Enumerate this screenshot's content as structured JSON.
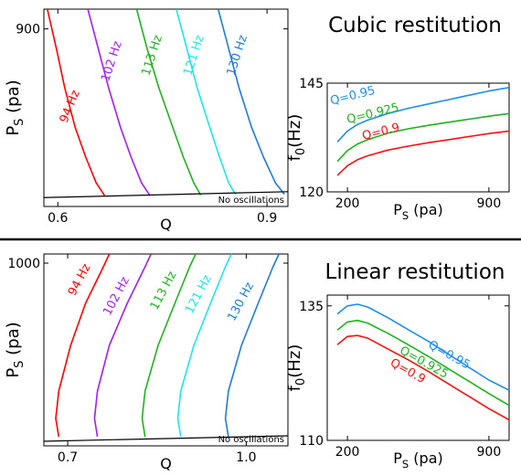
{
  "colors": {
    "94": "#ff0000",
    "102": "#a020f0",
    "113": "#1fb21f",
    "121": "#1fe5e5",
    "130": "#1e7bdc",
    "q090": "#ff1010",
    "q0925": "#1fb21f",
    "q095": "#1e8cf0"
  },
  "chart_data": [
    {
      "panel": "top-left",
      "type": "line",
      "xlabel": "Q",
      "ylabel": "P_S (pa)",
      "xlim": [
        0.58,
        0.93
      ],
      "ylim": [
        0,
        1000
      ],
      "xticks": [
        {
          "v": 0.6,
          "label": "0.6"
        },
        {
          "v": 0.9,
          "label": "0.9"
        }
      ],
      "yticks": [
        {
          "v": 900,
          "label": "900"
        }
      ],
      "boundary": {
        "x": [
          0.58,
          0.93
        ],
        "y": [
          45,
          75
        ]
      },
      "annotation": "No oscillations",
      "series": [
        {
          "name": "94 Hz",
          "color_key": "94",
          "x": [
            0.585,
            0.598,
            0.61,
            0.625,
            0.64,
            0.655,
            0.667
          ],
          "y": [
            1000,
            800,
            600,
            400,
            250,
            120,
            55
          ]
        },
        {
          "name": "102 Hz",
          "color_key": "102",
          "x": [
            0.643,
            0.658,
            0.673,
            0.69,
            0.705,
            0.72,
            0.732
          ],
          "y": [
            1000,
            800,
            600,
            400,
            250,
            120,
            55
          ]
        },
        {
          "name": "113 Hz",
          "color_key": "113",
          "x": [
            0.713,
            0.728,
            0.745,
            0.765,
            0.78,
            0.795,
            0.805
          ],
          "y": [
            1000,
            800,
            600,
            400,
            250,
            120,
            58
          ]
        },
        {
          "name": "121 Hz",
          "color_key": "121",
          "x": [
            0.77,
            0.785,
            0.8,
            0.818,
            0.832,
            0.845,
            0.855
          ],
          "y": [
            1000,
            800,
            600,
            400,
            250,
            120,
            60
          ]
        },
        {
          "name": "130 Hz",
          "color_key": "130",
          "x": [
            0.83,
            0.845,
            0.86,
            0.878,
            0.895,
            0.912,
            0.925
          ],
          "y": [
            1000,
            800,
            600,
            400,
            250,
            120,
            62
          ]
        }
      ],
      "labels": [
        {
          "text": "94 Hz",
          "color_key": "94",
          "x": 0.622,
          "y": 500,
          "rot": -68
        },
        {
          "text": "102 Hz",
          "color_key": "102",
          "x": 0.682,
          "y": 730,
          "rot": -72
        },
        {
          "text": "113 Hz",
          "color_key": "113",
          "x": 0.74,
          "y": 760,
          "rot": -72
        },
        {
          "text": "121 Hz",
          "color_key": "121",
          "x": 0.8,
          "y": 760,
          "rot": -72
        },
        {
          "text": "130 Hz",
          "color_key": "130",
          "x": 0.862,
          "y": 760,
          "rot": -72
        }
      ]
    },
    {
      "panel": "top-right",
      "type": "line",
      "title": "Cubic restitution",
      "xlabel": "P_S (pa)",
      "ylabel": "f_0(Hz)",
      "xlim": [
        100,
        1000
      ],
      "ylim": [
        120,
        145
      ],
      "xticks": [
        {
          "v": 200,
          "label": "200"
        },
        {
          "v": 900,
          "label": "900"
        }
      ],
      "yticks": [
        {
          "v": 145,
          "label": "145"
        },
        {
          "v": 120,
          "label": "120"
        }
      ],
      "series": [
        {
          "name": "Q=0.9",
          "color_key": "q090",
          "x": [
            150,
            200,
            250,
            300,
            400,
            500,
            600,
            700,
            800,
            900,
            1000
          ],
          "y": [
            123.8,
            126.0,
            127.4,
            128.3,
            129.6,
            130.5,
            131.3,
            132.0,
            132.7,
            133.4,
            134.0
          ]
        },
        {
          "name": "Q=0.925",
          "color_key": "q0925",
          "x": [
            150,
            200,
            250,
            300,
            400,
            500,
            600,
            700,
            800,
            900,
            1000
          ],
          "y": [
            127.0,
            129.5,
            131.0,
            132.0,
            133.5,
            134.5,
            135.3,
            136.0,
            136.7,
            137.4,
            138.0
          ]
        },
        {
          "name": "Q=0.95",
          "color_key": "q095",
          "x": [
            150,
            200,
            250,
            300,
            400,
            500,
            600,
            700,
            800,
            900,
            1000
          ],
          "y": [
            131.5,
            134.0,
            135.5,
            136.5,
            138.0,
            139.2,
            140.2,
            141.2,
            142.2,
            143.2,
            144.0
          ]
        }
      ],
      "labels": [
        {
          "text": "Q=0.95",
          "color_key": "q095",
          "x": 230,
          "y": 141.3,
          "rot": -14
        },
        {
          "text": "Q=0.925",
          "color_key": "q0925",
          "x": 330,
          "y": 137.2,
          "rot": -14
        },
        {
          "text": "Q=0.9",
          "color_key": "q090",
          "x": 370,
          "y": 133.0,
          "rot": -14
        }
      ]
    },
    {
      "panel": "bottom-left",
      "type": "line",
      "xlabel": "Q",
      "ylabel": "P_S (pa)",
      "xlim": [
        0.66,
        1.07
      ],
      "ylim": [
        0,
        1050
      ],
      "xticks": [
        {
          "v": 0.7,
          "label": "0.7"
        },
        {
          "v": 1.0,
          "label": "1.0"
        }
      ],
      "yticks": [
        {
          "v": 1000,
          "label": "1000"
        }
      ],
      "boundary": {
        "x": [
          0.66,
          1.07
        ],
        "y": [
          25,
          55
        ]
      },
      "annotation": "No oscillations",
      "series": [
        {
          "name": "94 Hz",
          "color_key": "94",
          "x": [
            0.685,
            0.68,
            0.685,
            0.705,
            0.73,
            0.76,
            0.77
          ],
          "y": [
            50,
            150,
            300,
            550,
            780,
            980,
            1050
          ]
        },
        {
          "name": "102 Hz",
          "color_key": "102",
          "x": [
            0.75,
            0.745,
            0.75,
            0.77,
            0.8,
            0.83,
            0.84
          ],
          "y": [
            50,
            150,
            300,
            550,
            780,
            980,
            1050
          ]
        },
        {
          "name": "113 Hz",
          "color_key": "113",
          "x": [
            0.83,
            0.825,
            0.83,
            0.852,
            0.88,
            0.905,
            0.915
          ],
          "y": [
            50,
            150,
            300,
            550,
            780,
            980,
            1050
          ]
        },
        {
          "name": "121 Hz",
          "color_key": "121",
          "x": [
            0.89,
            0.885,
            0.89,
            0.912,
            0.94,
            0.965,
            0.975
          ],
          "y": [
            50,
            150,
            300,
            550,
            780,
            980,
            1050
          ]
        },
        {
          "name": "130 Hz",
          "color_key": "130",
          "x": [
            0.97,
            0.965,
            0.97,
            0.992,
            1.02,
            1.045,
            1.055
          ],
          "y": [
            50,
            150,
            300,
            550,
            780,
            980,
            1050
          ]
        }
      ],
      "labels": [
        {
          "text": "94 Hz",
          "color_key": "94",
          "x": 0.725,
          "y": 900,
          "rot": -62
        },
        {
          "text": "102 Hz",
          "color_key": "102",
          "x": 0.787,
          "y": 810,
          "rot": -62
        },
        {
          "text": "113 Hz",
          "color_key": "113",
          "x": 0.866,
          "y": 840,
          "rot": -62
        },
        {
          "text": "121 Hz",
          "color_key": "121",
          "x": 0.925,
          "y": 820,
          "rot": -62
        },
        {
          "text": "130 Hz",
          "color_key": "130",
          "x": 0.996,
          "y": 780,
          "rot": -62
        }
      ]
    },
    {
      "panel": "bottom-right",
      "type": "line",
      "title": "Linear restitution",
      "xlabel": "P_S (pa)",
      "ylabel": "f_0(Hz)",
      "xlim": [
        100,
        1000
      ],
      "ylim": [
        110,
        137
      ],
      "xticks": [
        {
          "v": 200,
          "label": "200"
        },
        {
          "v": 900,
          "label": "900"
        }
      ],
      "yticks": [
        {
          "v": 135,
          "label": "135"
        },
        {
          "v": 110,
          "label": "110"
        }
      ],
      "series": [
        {
          "name": "Q=0.95",
          "color_key": "q095",
          "x": [
            150,
            200,
            250,
            300,
            400,
            500,
            600,
            700,
            800,
            900,
            1000
          ],
          "y": [
            133.5,
            135.0,
            135.3,
            134.8,
            132.8,
            130.6,
            128.4,
            126.0,
            123.6,
            121.2,
            119.3
          ]
        },
        {
          "name": "Q=0.925",
          "color_key": "q0925",
          "x": [
            150,
            200,
            250,
            300,
            400,
            500,
            600,
            700,
            800,
            900,
            1000
          ],
          "y": [
            130.5,
            132.0,
            132.3,
            131.8,
            129.9,
            127.8,
            125.6,
            123.3,
            121.0,
            118.7,
            116.5
          ]
        },
        {
          "name": "Q=0.9",
          "color_key": "q090",
          "x": [
            150,
            200,
            250,
            300,
            400,
            500,
            600,
            700,
            800,
            900,
            1000
          ],
          "y": [
            127.8,
            129.3,
            129.5,
            129.0,
            127.0,
            125.0,
            122.8,
            120.5,
            118.2,
            115.9,
            113.8
          ]
        }
      ],
      "labels": [
        {
          "text": "Q=0.95",
          "color_key": "q095",
          "x": 695,
          "y": 125.3,
          "rot": 29
        },
        {
          "text": "Q=0.925",
          "color_key": "q0925",
          "x": 570,
          "y": 123.9,
          "rot": 29
        },
        {
          "text": "Q=0.9",
          "color_key": "q090",
          "x": 490,
          "y": 122.3,
          "rot": 29
        }
      ]
    }
  ]
}
